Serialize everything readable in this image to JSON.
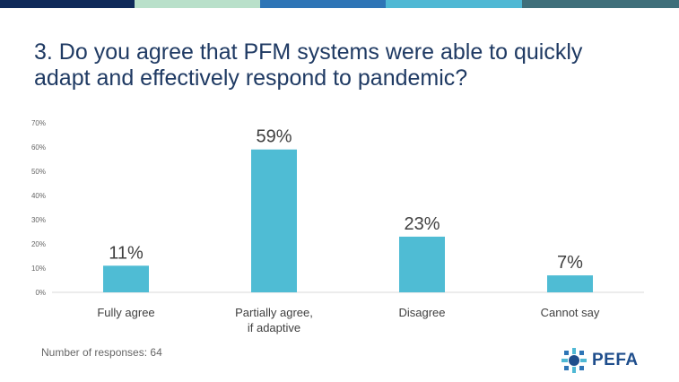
{
  "header": {
    "title": "3. Do you agree that PFM systems were able to quickly adapt and effectively respond to pandemic?",
    "bar_colors": [
      "#0f2a5a",
      "#b9e0ca",
      "#2e75b6",
      "#4fb8d4",
      "#3f6f7a"
    ]
  },
  "chart_data": {
    "type": "bar",
    "title": "",
    "xlabel": "",
    "ylabel": "",
    "categories": [
      "Fully agree",
      "Partially agree, if adaptive",
      "Disagree",
      "Cannot say"
    ],
    "values": [
      11,
      59,
      23,
      7
    ],
    "data_labels": [
      "11%",
      "59%",
      "23%",
      "7%"
    ],
    "yticks": [
      "0%",
      "10%",
      "20%",
      "30%",
      "40%",
      "50%",
      "60%",
      "70%"
    ],
    "ylim": [
      0,
      70
    ],
    "grid": false,
    "legend": "none",
    "bar_color": "#4fbcd4"
  },
  "footer": {
    "note": "Number of responses: 64",
    "logo_text": "PEFA",
    "logo_color": "#1f4e8c"
  }
}
